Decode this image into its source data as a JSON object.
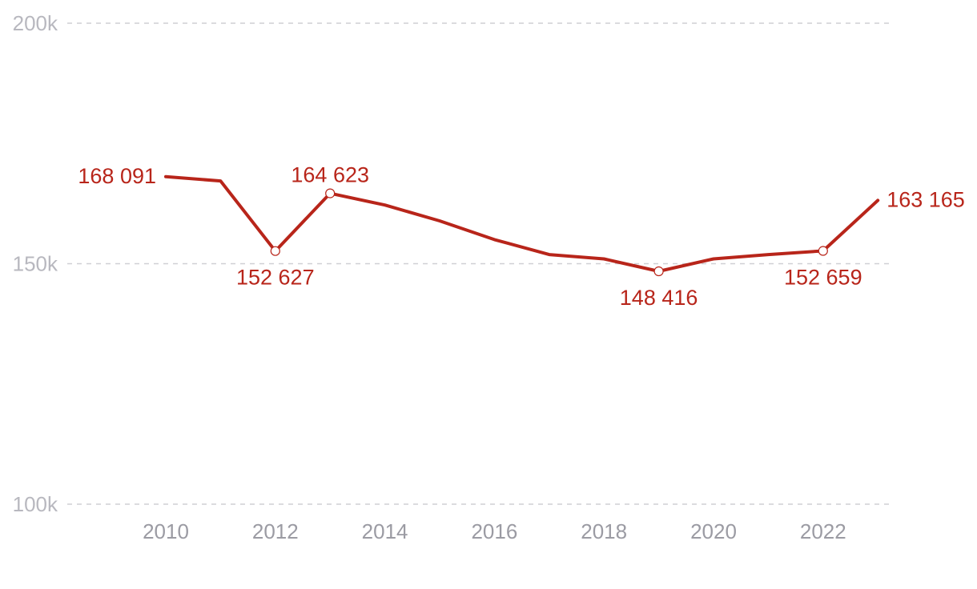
{
  "chart_data": {
    "type": "line",
    "title": "",
    "xlabel": "",
    "ylabel": "",
    "x": [
      2010,
      2011,
      2012,
      2013,
      2014,
      2015,
      2016,
      2017,
      2018,
      2019,
      2020,
      2021,
      2022,
      2023
    ],
    "series": [
      {
        "values": [
          168091,
          167200,
          152627,
          164623,
          162200,
          158900,
          155000,
          151900,
          151000,
          148416,
          151000,
          151900,
          152659,
          163165
        ]
      }
    ],
    "ylim": [
      100000,
      200000
    ],
    "y_ticks": [
      {
        "value": 200000,
        "label": "200k"
      },
      {
        "value": 150000,
        "label": "150k"
      },
      {
        "value": 100000,
        "label": "100k"
      }
    ],
    "x_ticks": [
      2010,
      2012,
      2014,
      2016,
      2018,
      2020,
      2022
    ],
    "grid": "horizontal-dashed",
    "legend": "none",
    "color": "#b8251a",
    "data_labels": [
      {
        "x": 2010,
        "value": 168091,
        "text": "168 091",
        "position": "left",
        "marker": false
      },
      {
        "x": 2012,
        "value": 152627,
        "text": "152 627",
        "position": "below",
        "marker": true
      },
      {
        "x": 2013,
        "value": 164623,
        "text": "164 623",
        "position": "above",
        "marker": true
      },
      {
        "x": 2019,
        "value": 148416,
        "text": "148 416",
        "position": "below",
        "marker": true
      },
      {
        "x": 2022,
        "value": 152659,
        "text": "152 659",
        "position": "below",
        "marker": true
      },
      {
        "x": 2023,
        "value": 163165,
        "text": "163 165",
        "position": "right",
        "marker": false
      }
    ]
  }
}
